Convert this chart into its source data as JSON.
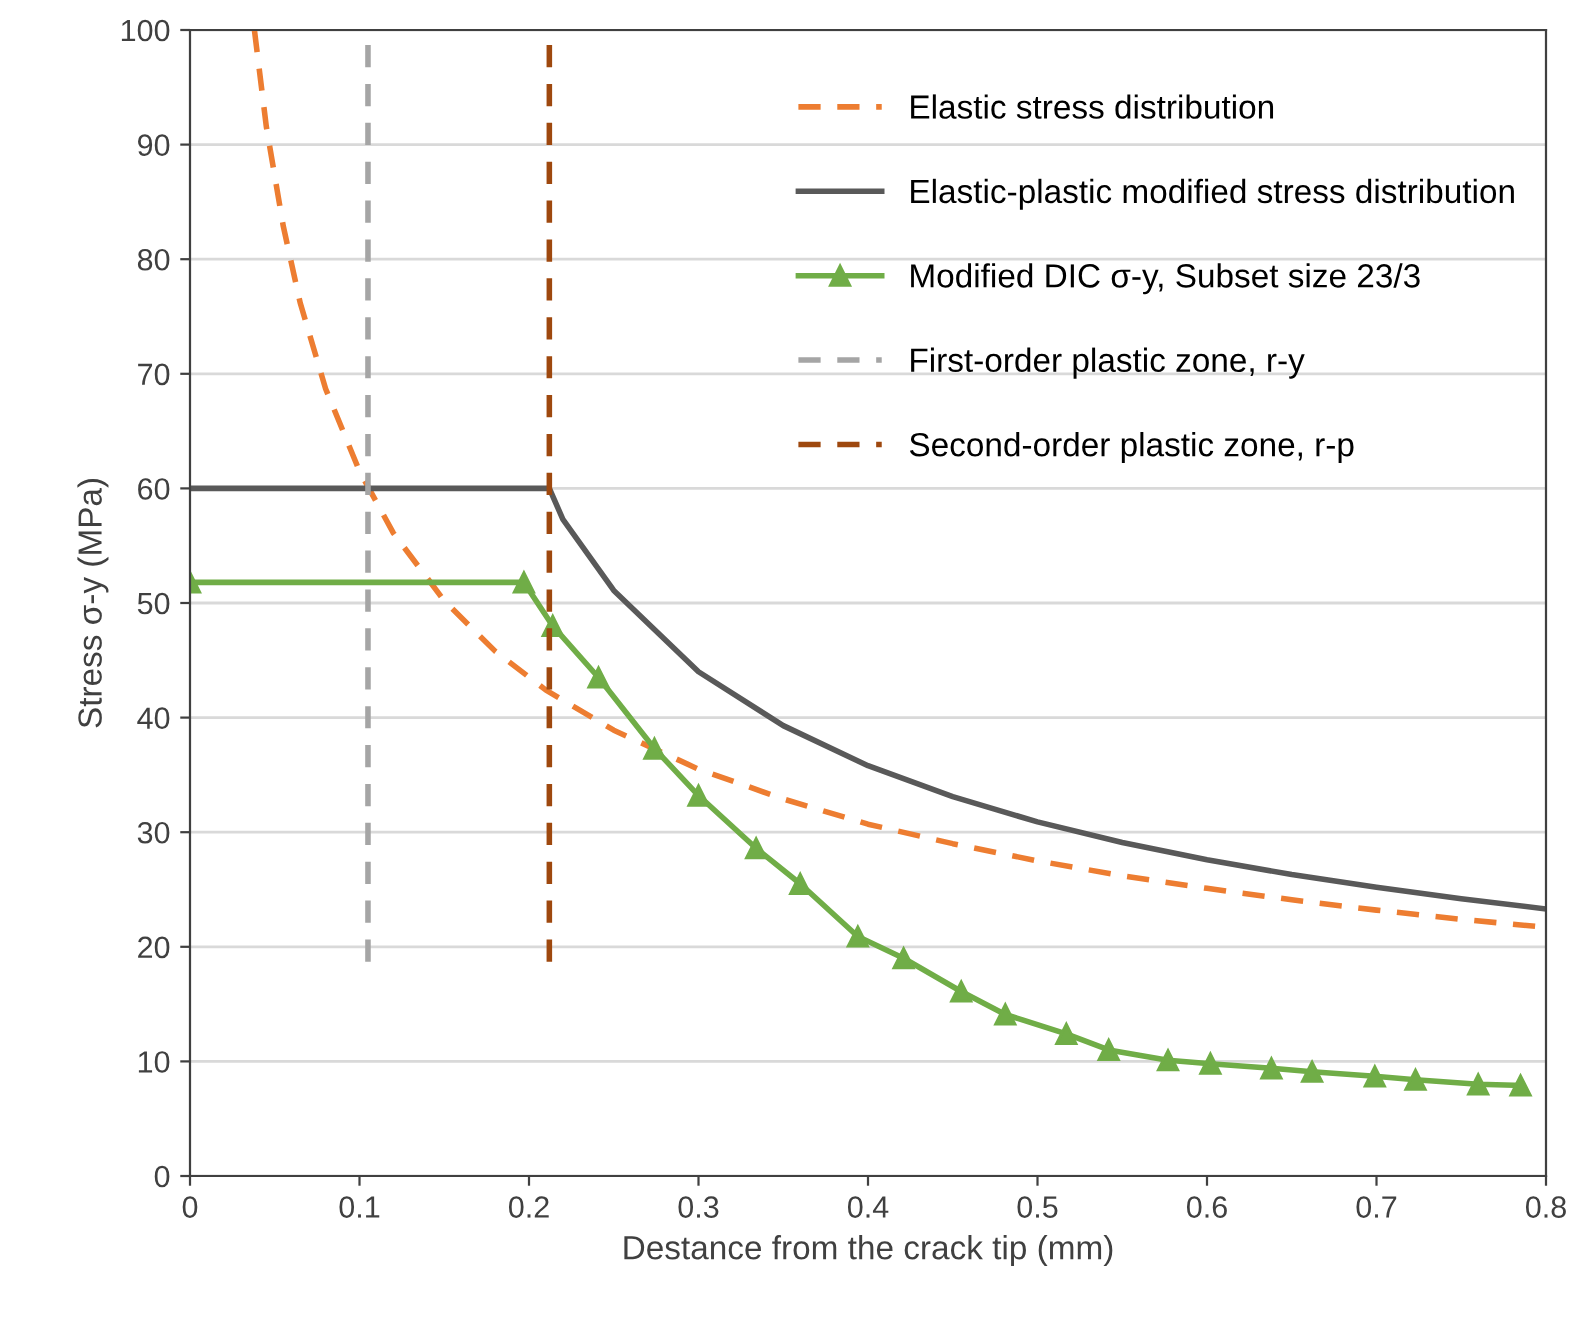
{
  "chart_data": {
    "type": "line",
    "xlabel": "Destance from the crack tip (mm)",
    "ylabel": "Stress σ-y (MPa)",
    "xlim": [
      0,
      0.8
    ],
    "ylim": [
      0,
      100
    ],
    "xticks": [
      {
        "value": 0,
        "label": "0"
      },
      0.1,
      0.2,
      0.3,
      0.4,
      0.5,
      0.6,
      0.7,
      0.8
    ],
    "yticks": [
      0,
      10,
      20,
      30,
      40,
      50,
      60,
      70,
      80,
      90,
      100
    ],
    "grid": "y",
    "legend": "top right",
    "series": [
      {
        "name": "Elastic stress distribution",
        "color": "#ed7d31",
        "line_style": "dashed",
        "marker": "none",
        "x": [
          0.038,
          0.045,
          0.055,
          0.065,
          0.08,
          0.1,
          0.12,
          0.15,
          0.18,
          0.21,
          0.25,
          0.3,
          0.35,
          0.4,
          0.45,
          0.5,
          0.55,
          0.6,
          0.65,
          0.7,
          0.75,
          0.8
        ],
        "values": [
          100,
          91.6,
          82.9,
          76.2,
          68.7,
          61.5,
          56.1,
          50.2,
          45.8,
          42.4,
          38.9,
          35.5,
          32.9,
          30.7,
          29.0,
          27.5,
          26.2,
          25.1,
          24.1,
          23.2,
          22.4,
          21.7
        ]
      },
      {
        "name": "Elastic-plastic modified stress distribution",
        "color": "#595959",
        "line_style": "solid",
        "marker": "none",
        "x": [
          0,
          0.1,
          0.212,
          0.22,
          0.25,
          0.3,
          0.35,
          0.4,
          0.45,
          0.5,
          0.55,
          0.6,
          0.65,
          0.7,
          0.75,
          0.8
        ],
        "values": [
          60,
          60,
          60,
          57.3,
          51.1,
          44.0,
          39.3,
          35.8,
          33.1,
          30.9,
          29.1,
          27.6,
          26.3,
          25.2,
          24.2,
          23.3
        ]
      },
      {
        "name": "Modified DIC σ-y, Subset size 23/3",
        "color": "#70ad47",
        "line_style": "solid",
        "marker": "triangle",
        "x": [
          0,
          0.197,
          0.214,
          0.241,
          0.274,
          0.3,
          0.334,
          0.36,
          0.394,
          0.421,
          0.455,
          0.481,
          0.517,
          0.542,
          0.577,
          0.602,
          0.638,
          0.662,
          0.699,
          0.723,
          0.76,
          0.785
        ],
        "values": [
          51.8,
          51.8,
          48.0,
          43.5,
          37.3,
          33.2,
          28.6,
          25.5,
          20.9,
          19.0,
          16.1,
          14.1,
          12.4,
          11.0,
          10.1,
          9.8,
          9.4,
          9.1,
          8.7,
          8.4,
          8.0,
          7.9
        ]
      },
      {
        "name": "First-order plastic zone, r-y",
        "color": "#a5a5a5",
        "line_style": "dashed",
        "marker": "none",
        "x": [
          0.105,
          0.105
        ],
        "values": [
          18.7,
          99
        ]
      },
      {
        "name": "Second-order plastic zone, r-p",
        "color": "#9e480e",
        "line_style": "dashed",
        "marker": "none",
        "x": [
          0.212,
          0.212
        ],
        "values": [
          18.7,
          99
        ]
      }
    ]
  }
}
